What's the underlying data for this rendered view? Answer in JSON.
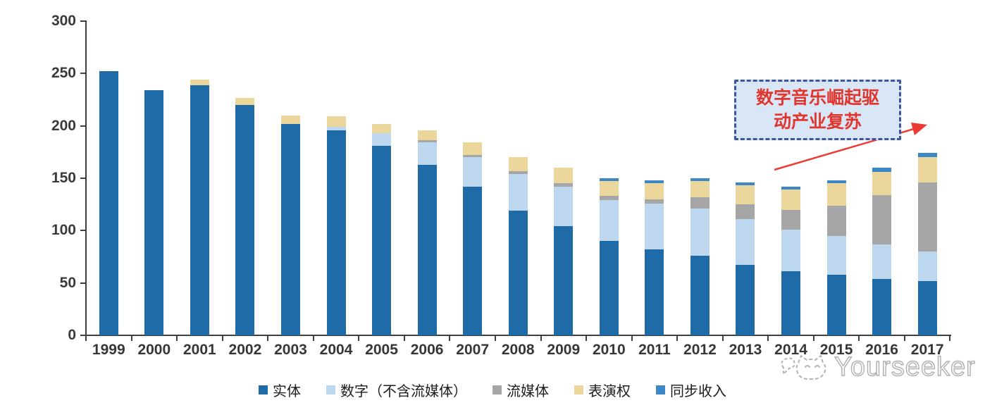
{
  "chart_data": {
    "type": "bar",
    "stacked": true,
    "title": "",
    "xlabel": "",
    "ylabel": "",
    "categories": [
      "1999",
      "2000",
      "2001",
      "2002",
      "2003",
      "2004",
      "2005",
      "2006",
      "2007",
      "2008",
      "2009",
      "2010",
      "2011",
      "2012",
      "2013",
      "2014",
      "2015",
      "2016",
      "2017"
    ],
    "series": [
      {
        "name": "实体",
        "color": "#1F6BA8",
        "values": [
          252,
          234,
          239,
          220,
          202,
          196,
          181,
          163,
          142,
          119,
          104,
          90,
          82,
          76,
          67,
          61,
          58,
          54,
          52
        ]
      },
      {
        "name": "数字（不含流媒体）",
        "color": "#BDD7EE",
        "values": [
          0,
          0,
          0,
          0,
          0,
          3,
          12,
          21,
          28,
          35,
          38,
          39,
          44,
          45,
          44,
          40,
          37,
          33,
          28
        ]
      },
      {
        "name": "流媒体",
        "color": "#A6A6A6",
        "values": [
          0,
          0,
          0,
          0,
          0,
          0,
          0,
          2,
          2,
          3,
          3,
          4,
          4,
          11,
          14,
          19,
          29,
          47,
          66
        ]
      },
      {
        "name": "表演权",
        "color": "#EBD79B",
        "values": [
          0,
          0,
          5,
          7,
          8,
          10,
          9,
          10,
          12,
          13,
          15,
          14,
          15,
          15,
          18,
          19,
          21,
          22,
          24
        ]
      },
      {
        "name": "同步收入",
        "color": "#3C87C7",
        "values": [
          0,
          0,
          0,
          0,
          0,
          0,
          0,
          0,
          0,
          0,
          0,
          3,
          3,
          3,
          3,
          3,
          3,
          4,
          4
        ]
      }
    ],
    "ylim": [
      0,
      300
    ],
    "yticks": [
      0,
      50,
      100,
      150,
      200,
      250,
      300
    ],
    "grid": false,
    "legend_position": "bottom"
  },
  "annotation": {
    "line1": "数字音乐崛起驱",
    "line2": "动产业复苏",
    "text_color": "#E0362E",
    "box_fill": "#D9E6F5",
    "box_border": "#3A55A5",
    "arrow_color": "#EC3B33"
  },
  "watermark": {
    "text": "Yourseeker"
  },
  "colors": {
    "axis": "#3f3f3f",
    "background": "#ffffff"
  }
}
